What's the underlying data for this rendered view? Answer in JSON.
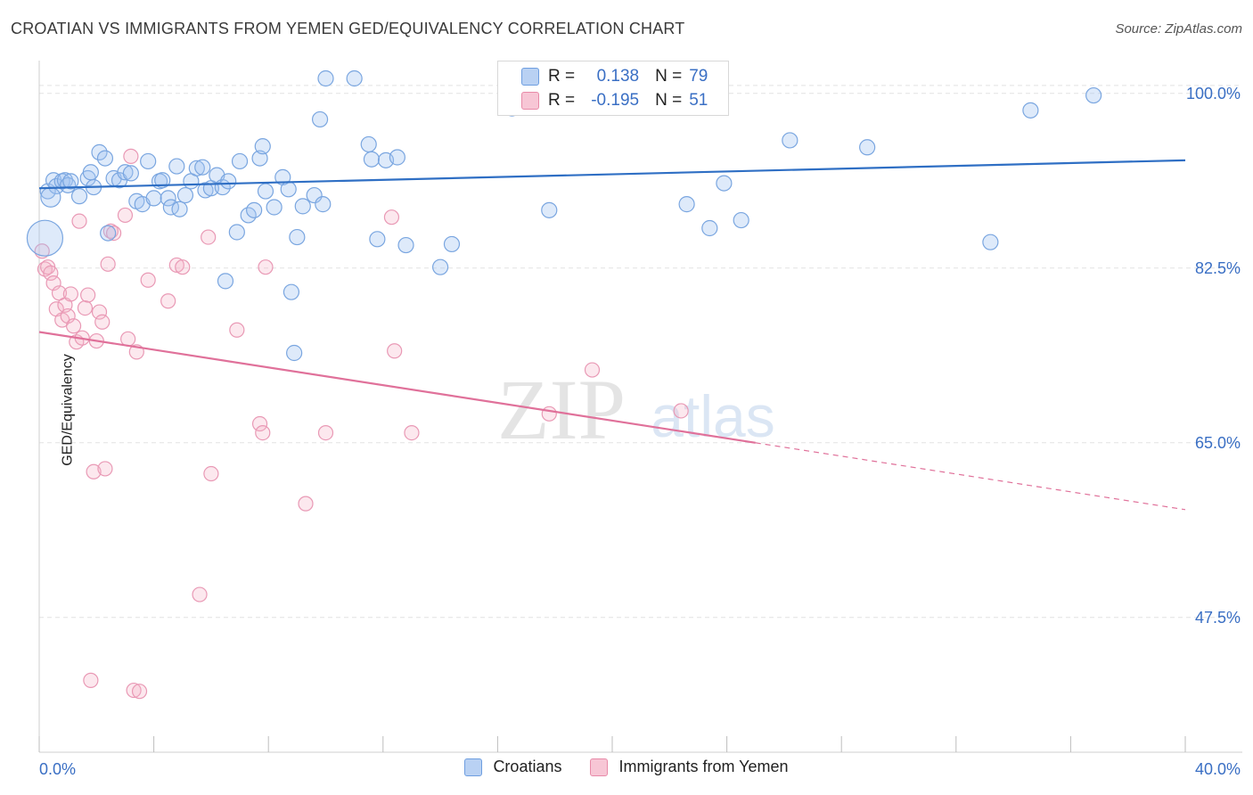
{
  "header": {
    "title": "CROATIAN VS IMMIGRANTS FROM YEMEN GED/EQUIVALENCY CORRELATION CHART",
    "source": "Source: ZipAtlas.com"
  },
  "watermark": {
    "zip": "ZIP",
    "atlas": "atlas"
  },
  "legend": {
    "rows": [
      {
        "r_label": "R =",
        "r_value": "0.138",
        "n_label": "N =",
        "n_value": "79",
        "color": "#6e9ee0",
        "fill": "#b9d1f3"
      },
      {
        "r_label": "R =",
        "r_value": "-0.195",
        "n_label": "N =",
        "n_value": "51",
        "color": "#e88aa8",
        "fill": "#f7c6d5"
      }
    ]
  },
  "bottom_legend": {
    "items": [
      "Croatians",
      "Immigrants from Yemen"
    ]
  },
  "colors": {
    "blue_stroke": "#7aa6e0",
    "blue_fill": "rgba(160,195,240,0.35)",
    "blue_line": "#2f6fc4",
    "pink_stroke": "#e999b5",
    "pink_fill": "rgba(245,180,200,0.30)",
    "pink_line": "#e0719a",
    "tick_label": "#3a6fc4",
    "grid": "#e2e2e2"
  },
  "chart_data": {
    "type": "scatter",
    "title": "CROATIAN VS IMMIGRANTS FROM YEMEN GED/EQUIVALENCY CORRELATION CHART",
    "xlabel": "",
    "ylabel": "GED/Equivalency",
    "xlim": [
      0,
      40
    ],
    "ylim": [
      34,
      104
    ],
    "x_tick_labels": [
      "0.0%",
      "40.0%"
    ],
    "y_ticks": [
      47.5,
      65.0,
      82.5,
      100.0
    ],
    "y_tick_labels": [
      "47.5%",
      "65.0%",
      "82.5%",
      "100.0%"
    ],
    "grid": true,
    "legend_placement": "top-center",
    "series": [
      {
        "name": "Croatians",
        "trend": {
          "x": [
            0,
            40
          ],
          "y": [
            90.5,
            93.3
          ]
        },
        "points": [
          [
            0.2,
            85.5
          ],
          [
            0.3,
            90.2
          ],
          [
            0.5,
            91.3
          ],
          [
            0.6,
            90.7
          ],
          [
            0.8,
            91.2
          ],
          [
            0.9,
            91.3
          ],
          [
            1.0,
            90.8
          ],
          [
            1.1,
            91.2
          ],
          [
            1.4,
            89.7
          ],
          [
            1.7,
            91.5
          ],
          [
            1.8,
            92.1
          ],
          [
            1.9,
            90.6
          ],
          [
            2.1,
            94.1
          ],
          [
            2.3,
            93.5
          ],
          [
            2.4,
            86.0
          ],
          [
            2.6,
            91.5
          ],
          [
            2.8,
            91.3
          ],
          [
            3.0,
            92.1
          ],
          [
            3.2,
            92.0
          ],
          [
            3.4,
            89.2
          ],
          [
            3.6,
            88.9
          ],
          [
            3.8,
            93.2
          ],
          [
            4.0,
            89.5
          ],
          [
            4.2,
            91.2
          ],
          [
            4.3,
            91.3
          ],
          [
            4.5,
            89.5
          ],
          [
            4.6,
            88.6
          ],
          [
            4.8,
            92.7
          ],
          [
            4.9,
            88.4
          ],
          [
            5.1,
            89.8
          ],
          [
            5.3,
            91.2
          ],
          [
            5.5,
            92.5
          ],
          [
            5.7,
            92.6
          ],
          [
            5.8,
            90.3
          ],
          [
            6.0,
            90.5
          ],
          [
            6.2,
            91.8
          ],
          [
            6.4,
            90.6
          ],
          [
            6.6,
            91.2
          ],
          [
            6.9,
            86.1
          ],
          [
            7.0,
            93.2
          ],
          [
            7.3,
            87.8
          ],
          [
            7.5,
            88.3
          ],
          [
            7.7,
            93.5
          ],
          [
            7.8,
            94.7
          ],
          [
            7.9,
            90.2
          ],
          [
            8.2,
            88.6
          ],
          [
            8.5,
            91.6
          ],
          [
            8.7,
            90.4
          ],
          [
            8.8,
            80.1
          ],
          [
            8.9,
            74.0
          ],
          [
            9.0,
            85.6
          ],
          [
            9.2,
            88.7
          ],
          [
            9.6,
            89.8
          ],
          [
            9.8,
            97.4
          ],
          [
            9.9,
            88.9
          ],
          [
            10.0,
            101.5
          ],
          [
            11.0,
            101.5
          ],
          [
            11.5,
            94.9
          ],
          [
            11.6,
            93.4
          ],
          [
            11.8,
            85.4
          ],
          [
            12.1,
            93.3
          ],
          [
            12.5,
            93.6
          ],
          [
            12.8,
            84.8
          ],
          [
            14.0,
            82.6
          ],
          [
            14.4,
            84.9
          ],
          [
            16.5,
            98.5
          ],
          [
            17.0,
            101.5
          ],
          [
            17.8,
            88.3
          ],
          [
            22.6,
            88.9
          ],
          [
            23.4,
            86.5
          ],
          [
            23.9,
            91.0
          ],
          [
            24.5,
            87.3
          ],
          [
            26.2,
            95.3
          ],
          [
            28.9,
            94.6
          ],
          [
            33.2,
            85.1
          ],
          [
            34.6,
            98.3
          ],
          [
            36.8,
            99.8
          ],
          [
            6.5,
            81.2
          ],
          [
            0.4,
            89.6
          ]
        ],
        "sizes_note": "one large point at x=0, y=85.5"
      },
      {
        "name": "Immigrants from Yemen",
        "trend": {
          "x": [
            0,
            25
          ],
          "y": [
            76.1,
            65.0
          ],
          "dashed_extension": {
            "x": [
              25,
              40
            ],
            "y": [
              65.0,
              58.3
            ]
          }
        },
        "points": [
          [
            0.1,
            84.2
          ],
          [
            0.2,
            82.4
          ],
          [
            0.3,
            82.6
          ],
          [
            0.4,
            82.0
          ],
          [
            0.5,
            81.0
          ],
          [
            0.6,
            78.4
          ],
          [
            0.7,
            80.0
          ],
          [
            0.8,
            77.3
          ],
          [
            0.9,
            78.8
          ],
          [
            1.0,
            77.7
          ],
          [
            1.1,
            79.9
          ],
          [
            1.2,
            76.7
          ],
          [
            1.3,
            75.1
          ],
          [
            1.4,
            87.2
          ],
          [
            1.5,
            75.5
          ],
          [
            1.6,
            78.5
          ],
          [
            1.7,
            79.8
          ],
          [
            1.8,
            41.2
          ],
          [
            1.9,
            62.1
          ],
          [
            2.0,
            75.2
          ],
          [
            2.1,
            78.1
          ],
          [
            2.2,
            77.1
          ],
          [
            2.3,
            62.4
          ],
          [
            2.4,
            82.9
          ],
          [
            2.5,
            86.2
          ],
          [
            2.6,
            86.0
          ],
          [
            3.0,
            87.8
          ],
          [
            3.1,
            75.4
          ],
          [
            3.2,
            93.7
          ],
          [
            3.3,
            40.2
          ],
          [
            3.4,
            74.1
          ],
          [
            3.5,
            40.1
          ],
          [
            3.8,
            81.3
          ],
          [
            4.5,
            79.2
          ],
          [
            4.8,
            82.8
          ],
          [
            5.0,
            82.6
          ],
          [
            5.6,
            49.8
          ],
          [
            5.9,
            85.6
          ],
          [
            6.0,
            61.9
          ],
          [
            6.9,
            76.3
          ],
          [
            7.7,
            66.9
          ],
          [
            7.8,
            66.0
          ],
          [
            7.9,
            82.6
          ],
          [
            9.3,
            58.9
          ],
          [
            10.0,
            66.0
          ],
          [
            12.3,
            87.6
          ],
          [
            12.4,
            74.2
          ],
          [
            13.0,
            66.0
          ],
          [
            17.8,
            67.9
          ],
          [
            19.3,
            72.3
          ],
          [
            22.4,
            68.2
          ]
        ]
      }
    ]
  }
}
